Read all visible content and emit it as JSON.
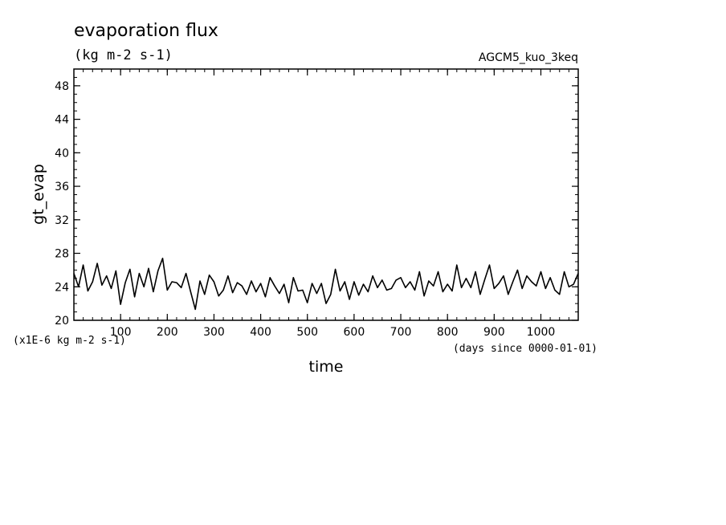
{
  "chart_data": {
    "type": "line",
    "title": "evaporation flux",
    "subtitle": "(kg m-2 s-1)",
    "annotation_right": "AGCM5_kuo_3keq",
    "xlabel": "time",
    "xunit": "(days since 0000-01-01)",
    "ylabel": "gt_evap",
    "yunit": "(x1E-6 kg m-2 s-1)",
    "xlim": [
      0,
      1080
    ],
    "ylim": [
      20,
      50
    ],
    "xticks": [
      100,
      200,
      300,
      400,
      500,
      600,
      700,
      800,
      900,
      1000
    ],
    "xtick_labels": [
      "100",
      "200",
      "300",
      "400",
      "500",
      "600",
      "700",
      "800",
      "900",
      "1000"
    ],
    "yticks": [
      20,
      24,
      28,
      32,
      36,
      40,
      44,
      48
    ],
    "ytick_labels": [
      "20",
      "24",
      "28",
      "32",
      "36",
      "40",
      "44",
      "48"
    ],
    "grid": false,
    "series": [
      {
        "color": "#000000",
        "x": [
          0,
          10,
          20,
          30,
          40,
          50,
          60,
          70,
          80,
          90,
          100,
          110,
          120,
          130,
          140,
          150,
          160,
          170,
          180,
          190,
          200,
          210,
          220,
          230,
          240,
          250,
          260,
          270,
          280,
          290,
          300,
          310,
          320,
          330,
          340,
          350,
          360,
          370,
          380,
          390,
          400,
          410,
          420,
          430,
          440,
          450,
          460,
          470,
          480,
          490,
          500,
          510,
          520,
          530,
          540,
          550,
          560,
          570,
          580,
          590,
          600,
          610,
          620,
          630,
          640,
          650,
          660,
          670,
          680,
          690,
          700,
          710,
          720,
          730,
          740,
          750,
          760,
          770,
          780,
          790,
          800,
          810,
          820,
          830,
          840,
          850,
          860,
          870,
          880,
          890,
          900,
          910,
          920,
          930,
          940,
          950,
          960,
          970,
          980,
          990,
          1000,
          1010,
          1020,
          1030,
          1040,
          1050,
          1060,
          1070,
          1080
        ],
        "y": [
          25.6,
          24.0,
          26.6,
          23.5,
          24.6,
          26.8,
          24.2,
          25.3,
          23.8,
          25.9,
          21.9,
          24.5,
          26.1,
          22.8,
          25.6,
          24.0,
          26.2,
          23.4,
          25.9,
          27.4,
          23.6,
          24.6,
          24.5,
          23.9,
          25.6,
          23.4,
          21.3,
          24.7,
          23.1,
          25.4,
          24.6,
          22.9,
          23.6,
          25.3,
          23.3,
          24.5,
          24.1,
          23.1,
          24.7,
          23.4,
          24.4,
          22.8,
          25.1,
          24.1,
          23.2,
          24.3,
          22.1,
          25.1,
          23.5,
          23.6,
          22.1,
          24.4,
          23.2,
          24.4,
          22.0,
          23.1,
          26.1,
          23.5,
          24.6,
          22.5,
          24.6,
          23.0,
          24.3,
          23.4,
          25.3,
          23.9,
          24.8,
          23.6,
          23.8,
          24.8,
          25.1,
          23.9,
          24.6,
          23.6,
          25.8,
          22.9,
          24.7,
          24.1,
          25.8,
          23.4,
          24.3,
          23.5,
          26.6,
          23.9,
          25.0,
          23.9,
          25.8,
          23.1,
          24.9,
          26.6,
          23.8,
          24.4,
          25.3,
          23.1,
          24.6,
          26.0,
          23.8,
          25.3,
          24.6,
          24.1,
          25.8,
          23.8,
          25.1,
          23.6,
          23.1,
          25.8,
          24.0,
          24.3,
          25.6
        ]
      }
    ]
  }
}
